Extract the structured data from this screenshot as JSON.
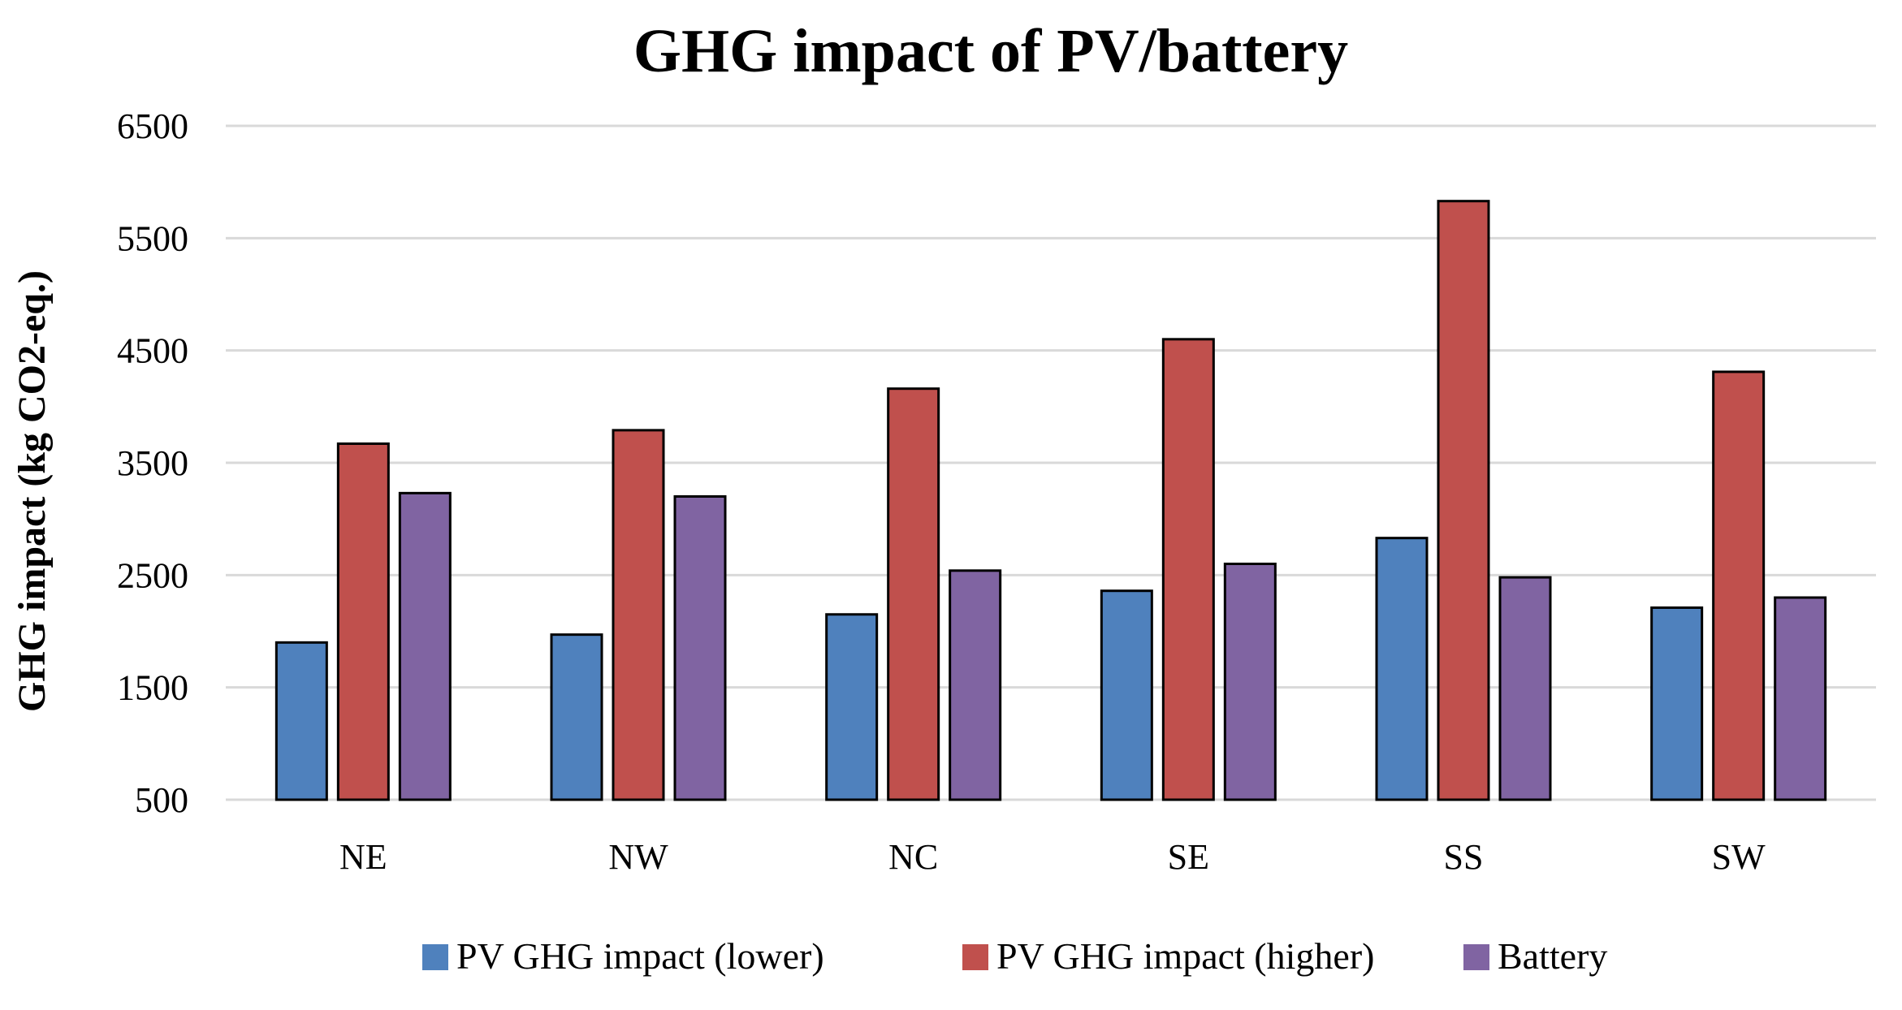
{
  "chart_data": {
    "type": "bar",
    "title": "GHG impact of PV/battery",
    "xlabel": "",
    "ylabel": "GHG impact (kg CO2-eq.)",
    "ylim": [
      500,
      6500
    ],
    "yticks": [
      500,
      1500,
      2500,
      3500,
      4500,
      5500,
      6500
    ],
    "grid": true,
    "legend_position": "bottom",
    "categories": [
      "NE",
      "NW",
      "NC",
      "SE",
      "SS",
      "SW"
    ],
    "series": [
      {
        "name": "PV GHG impact (lower)",
        "color": "#4f81bd",
        "values": [
          1900,
          1970,
          2150,
          2360,
          2830,
          2210
        ]
      },
      {
        "name": "PV GHG impact (higher)",
        "color": "#c0504d",
        "values": [
          3670,
          3790,
          4160,
          4600,
          5830,
          4310
        ]
      },
      {
        "name": "Battery",
        "color": "#8064a2",
        "values": [
          3230,
          3200,
          2540,
          2600,
          2480,
          2300
        ]
      }
    ]
  }
}
